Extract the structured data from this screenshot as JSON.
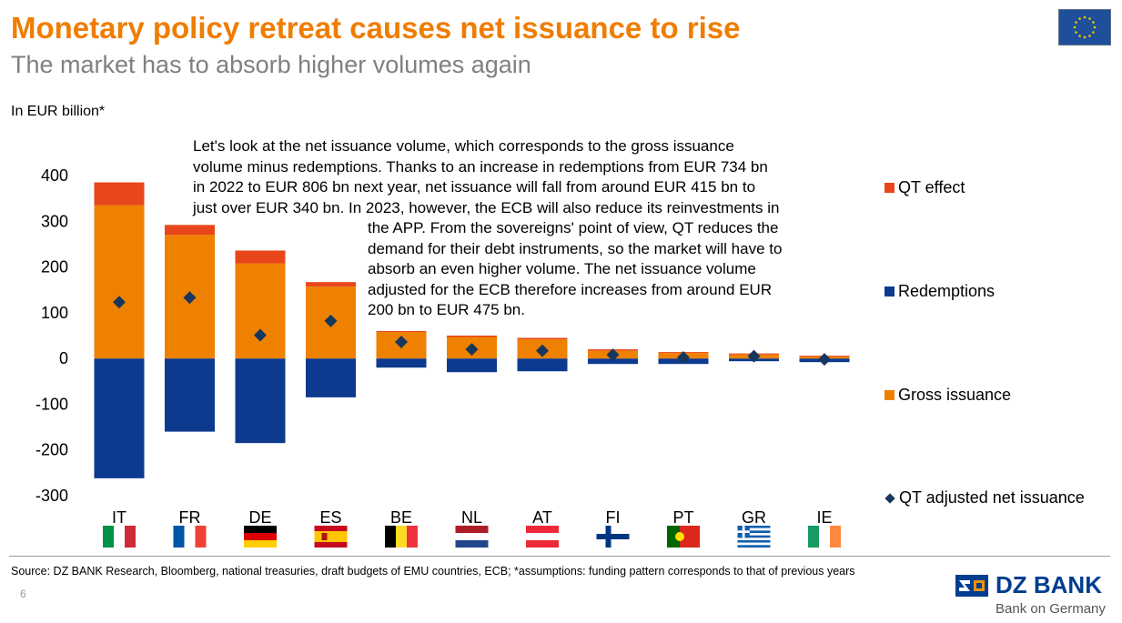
{
  "header": {
    "title": "Monetary policy retreat causes net issuance to rise",
    "subtitle": "The market has to absorb higher volumes again"
  },
  "unit_label": "In EUR billion*",
  "annotation": {
    "lines": [
      "Let's look at the net issuance volume, which corresponds to the gross issuance",
      "volume minus redemptions. Thanks to an increase in redemptions from EUR 734 bn",
      "in 2022 to EUR 806 bn next year, net issuance will fall from around EUR 415 bn to",
      "just over EUR 340 bn. In 2023, however, the ECB will also reduce its reinvestments in",
      "the APP. From the sovereigns' point of view, QT reduces the",
      "demand for their debt instruments, so the market will have to",
      "absorb an even higher volume. The net issuance volume",
      "adjusted for the ECB therefore increases from around EUR",
      "200 bn to EUR 475 bn."
    ]
  },
  "legend": {
    "qt_effect": "QT effect",
    "redemptions": "Redemptions",
    "gross_issuance": "Gross issuance",
    "qt_net": "QT adjusted net issuance"
  },
  "colors": {
    "title": "#ef7d00",
    "qt_effect": "#e8461b",
    "gross_issuance": "#ef8100",
    "redemptions": "#0d3a8e",
    "qt_net": "#17375e"
  },
  "chart_data": {
    "type": "bar",
    "title": "",
    "ylabel": "In EUR billion*",
    "ylim": [
      -300,
      400
    ],
    "yticks": [
      400,
      300,
      200,
      100,
      0,
      -100,
      -200,
      -300
    ],
    "categories": [
      "IT",
      "FR",
      "DE",
      "ES",
      "BE",
      "NL",
      "AT",
      "FI",
      "PT",
      "GR",
      "IE"
    ],
    "series": [
      {
        "name": "Gross issuance",
        "values": [
          335,
          270,
          208,
          157,
          58,
          47,
          42,
          17,
          12,
          9,
          5
        ]
      },
      {
        "name": "QT effect",
        "values": [
          50,
          22,
          28,
          10,
          2,
          3,
          3,
          3,
          2,
          2,
          1
        ]
      },
      {
        "name": "Redemptions",
        "values": [
          -262,
          -160,
          -185,
          -85,
          -20,
          -30,
          -28,
          -12,
          -12,
          -6,
          -8
        ]
      },
      {
        "name": "QT adjusted net issuance",
        "values": [
          123,
          133,
          51,
          82,
          36,
          20,
          17,
          8,
          2,
          5,
          -2
        ]
      }
    ]
  },
  "footer": {
    "source": "Source: DZ BANK Research, Bloomberg, national treasuries, draft budgets of EMU countries, ECB; *assumptions: funding pattern corresponds to that of previous years",
    "page_number": "6",
    "brand_name": "DZ BANK",
    "brand_tagline": "Bank on Germany"
  }
}
